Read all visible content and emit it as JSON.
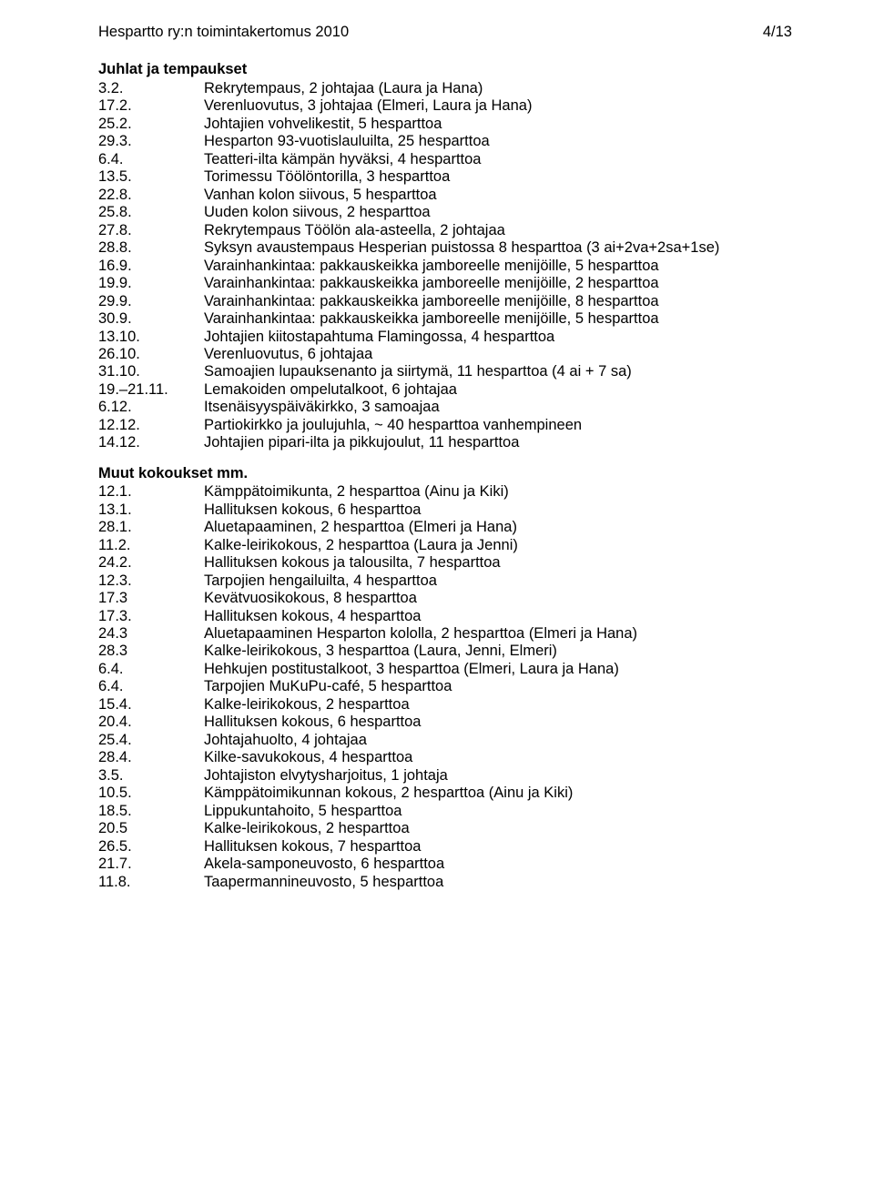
{
  "header": {
    "left": "Hespartto ry:n toimintakertomus 2010",
    "right": "4/13"
  },
  "section1": {
    "title": "Juhlat ja tempaukset",
    "rows": [
      {
        "d": "3.2.",
        "t": "Rekrytempaus, 2 johtajaa (Laura ja Hana)"
      },
      {
        "d": "17.2.",
        "t": "Verenluovutus, 3 johtajaa (Elmeri, Laura ja Hana)"
      },
      {
        "d": "25.2.",
        "t": "Johtajien vohvelikestit, 5 hesparttoa"
      },
      {
        "d": "29.3.",
        "t": "Hesparton 93-vuotislauluilta, 25 hesparttoa"
      },
      {
        "d": "6.4.",
        "t": "Teatteri-ilta kämpän hyväksi, 4 hesparttoa"
      },
      {
        "d": "13.5.",
        "t": "Torimessu Töölöntorilla, 3 hesparttoa"
      },
      {
        "d": "22.8.",
        "t": "Vanhan kolon siivous, 5 hesparttoa"
      },
      {
        "d": "25.8.",
        "t": "Uuden kolon siivous, 2 hesparttoa"
      },
      {
        "d": "27.8.",
        "t": "Rekrytempaus Töölön ala-asteella, 2 johtajaa"
      },
      {
        "d": "28.8.",
        "t": "Syksyn avaustempaus Hesperian puistossa 8 hesparttoa (3 ai+2va+2sa+1se)"
      },
      {
        "d": "16.9.",
        "t": "Varainhankintaa: pakkauskeikka jamboreelle menijöille, 5 hesparttoa"
      },
      {
        "d": "19.9.",
        "t": "Varainhankintaa: pakkauskeikka jamboreelle menijöille, 2 hesparttoa"
      },
      {
        "d": "29.9.",
        "t": "Varainhankintaa: pakkauskeikka jamboreelle menijöille, 8 hesparttoa"
      },
      {
        "d": "30.9.",
        "t": "Varainhankintaa: pakkauskeikka jamboreelle menijöille, 5 hesparttoa"
      },
      {
        "d": "13.10.",
        "t": "Johtajien kiitostapahtuma Flamingossa, 4 hesparttoa"
      },
      {
        "d": "26.10.",
        "t": "Verenluovutus, 6 johtajaa"
      },
      {
        "d": "31.10.",
        "t": "Samoajien lupauksenanto ja siirtymä, 11 hesparttoa (4 ai + 7 sa)"
      },
      {
        "d": "19.–21.11.",
        "t": "Lemakoiden ompelutalkoot, 6 johtajaa"
      },
      {
        "d": "6.12.",
        "t": "Itsenäisyyspäiväkirkko, 3 samoajaa"
      },
      {
        "d": "12.12.",
        "t": "Partiokirkko ja joulujuhla, ~ 40 hesparttoa vanhempineen"
      },
      {
        "d": "14.12.",
        "t": "Johtajien pipari-ilta ja pikkujoulut, 11 hesparttoa"
      }
    ]
  },
  "section2": {
    "title": "Muut kokoukset mm.",
    "rows": [
      {
        "d": "12.1.",
        "t": "Kämppätoimikunta, 2 hesparttoa (Ainu ja Kiki)"
      },
      {
        "d": "13.1.",
        "t": "Hallituksen kokous, 6 hesparttoa"
      },
      {
        "d": "28.1.",
        "t": "Aluetapaaminen, 2 hesparttoa (Elmeri ja Hana)"
      },
      {
        "d": "11.2.",
        "t": "Kalke-leirikokous, 2 hesparttoa (Laura ja Jenni)"
      },
      {
        "d": "24.2.",
        "t": "Hallituksen kokous ja talousilta, 7 hesparttoa"
      },
      {
        "d": "12.3.",
        "t": "Tarpojien hengailuilta, 4 hesparttoa"
      },
      {
        "d": "17.3",
        "t": "Kevätvuosikokous, 8 hesparttoa"
      },
      {
        "d": "17.3.",
        "t": "Hallituksen kokous, 4 hesparttoa"
      },
      {
        "d": "24.3",
        "t": "Aluetapaaminen Hesparton kololla, 2 hesparttoa (Elmeri ja Hana)"
      },
      {
        "d": "28.3",
        "t": "Kalke-leirikokous, 3 hesparttoa (Laura, Jenni, Elmeri)"
      },
      {
        "d": "6.4.",
        "t": "Hehkujen postitustalkoot, 3 hesparttoa (Elmeri, Laura ja Hana)"
      },
      {
        "d": "6.4.",
        "t": "Tarpojien MuKuPu-café, 5 hesparttoa"
      },
      {
        "d": "15.4.",
        "t": "Kalke-leirikokous, 2 hesparttoa"
      },
      {
        "d": "20.4.",
        "t": "Hallituksen kokous, 6 hesparttoa"
      },
      {
        "d": "25.4.",
        "t": "Johtajahuolto, 4 johtajaa"
      },
      {
        "d": "28.4.",
        "t": "Kilke-savukokous, 4 hesparttoa"
      },
      {
        "d": "3.5.",
        "t": "Johtajiston elvytysharjoitus, 1 johtaja"
      },
      {
        "d": "10.5.",
        "t": "Kämppätoimikunnan kokous, 2 hesparttoa (Ainu ja Kiki)"
      },
      {
        "d": "18.5.",
        "t": "Lippukuntahoito, 5 hesparttoa"
      },
      {
        "d": "20.5",
        "t": "Kalke-leirikokous, 2 hesparttoa"
      },
      {
        "d": "26.5.",
        "t": "Hallituksen kokous, 7 hesparttoa"
      },
      {
        "d": "21.7.",
        "t": "Akela-samponeuvosto, 6 hesparttoa"
      },
      {
        "d": "11.8.",
        "t": "Taapermannineuvosto, 5 hesparttoa"
      }
    ]
  }
}
